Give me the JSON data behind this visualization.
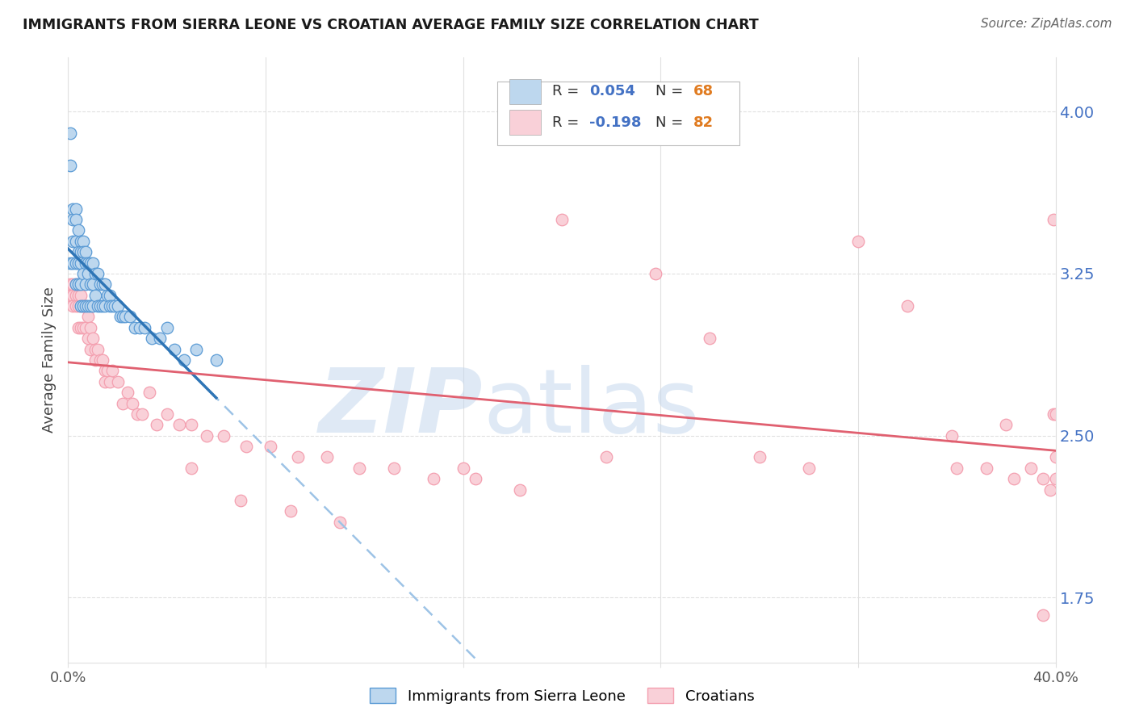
{
  "title": "IMMIGRANTS FROM SIERRA LEONE VS CROATIAN AVERAGE FAMILY SIZE CORRELATION CHART",
  "source": "Source: ZipAtlas.com",
  "ylabel": "Average Family Size",
  "yticks": [
    1.75,
    2.5,
    3.25,
    4.0
  ],
  "xlim": [
    0.0,
    0.4
  ],
  "ylim": [
    1.45,
    4.25
  ],
  "legend_label1": "Immigrants from Sierra Leone",
  "legend_label2": "Croatians",
  "blue_color": "#5b9bd5",
  "blue_fill": "#bdd7ee",
  "pink_color": "#f4a0b0",
  "pink_fill": "#f9d0d8",
  "trend_blue_solid_color": "#2e75b6",
  "trend_blue_dash_color": "#9dc3e6",
  "trend_pink_color": "#e06070",
  "grid_color": "#e0e0e0",
  "tick_label_color": "#4472c4",
  "watermark_zip_color": "#c5d8ee",
  "watermark_atlas_color": "#c5d8ee",
  "blue_x": [
    0.001,
    0.001,
    0.001,
    0.002,
    0.002,
    0.002,
    0.002,
    0.003,
    0.003,
    0.003,
    0.003,
    0.003,
    0.004,
    0.004,
    0.004,
    0.004,
    0.005,
    0.005,
    0.005,
    0.005,
    0.005,
    0.006,
    0.006,
    0.006,
    0.006,
    0.007,
    0.007,
    0.007,
    0.007,
    0.008,
    0.008,
    0.008,
    0.009,
    0.009,
    0.009,
    0.01,
    0.01,
    0.01,
    0.011,
    0.011,
    0.012,
    0.012,
    0.013,
    0.013,
    0.014,
    0.014,
    0.015,
    0.015,
    0.016,
    0.017,
    0.017,
    0.018,
    0.019,
    0.02,
    0.021,
    0.022,
    0.023,
    0.025,
    0.027,
    0.029,
    0.031,
    0.034,
    0.037,
    0.04,
    0.043,
    0.047,
    0.052,
    0.06
  ],
  "blue_y": [
    3.3,
    3.75,
    3.9,
    3.55,
    3.5,
    3.4,
    3.3,
    3.55,
    3.5,
    3.4,
    3.3,
    3.2,
    3.45,
    3.35,
    3.3,
    3.2,
    3.4,
    3.35,
    3.3,
    3.2,
    3.1,
    3.4,
    3.35,
    3.25,
    3.1,
    3.35,
    3.3,
    3.2,
    3.1,
    3.3,
    3.25,
    3.1,
    3.3,
    3.2,
    3.1,
    3.3,
    3.2,
    3.1,
    3.25,
    3.15,
    3.25,
    3.1,
    3.2,
    3.1,
    3.2,
    3.1,
    3.2,
    3.1,
    3.15,
    3.15,
    3.1,
    3.1,
    3.1,
    3.1,
    3.05,
    3.05,
    3.05,
    3.05,
    3.0,
    3.0,
    3.0,
    2.95,
    2.95,
    3.0,
    2.9,
    2.85,
    2.9,
    2.85
  ],
  "pink_x": [
    0.001,
    0.001,
    0.002,
    0.002,
    0.002,
    0.003,
    0.003,
    0.003,
    0.004,
    0.004,
    0.004,
    0.005,
    0.005,
    0.005,
    0.006,
    0.006,
    0.007,
    0.007,
    0.008,
    0.008,
    0.009,
    0.009,
    0.01,
    0.011,
    0.011,
    0.012,
    0.013,
    0.014,
    0.015,
    0.015,
    0.016,
    0.017,
    0.018,
    0.02,
    0.022,
    0.024,
    0.026,
    0.028,
    0.03,
    0.033,
    0.036,
    0.04,
    0.045,
    0.05,
    0.056,
    0.063,
    0.072,
    0.082,
    0.093,
    0.105,
    0.118,
    0.132,
    0.148,
    0.165,
    0.183,
    0.2,
    0.218,
    0.238,
    0.26,
    0.28,
    0.3,
    0.32,
    0.34,
    0.358,
    0.372,
    0.383,
    0.39,
    0.395,
    0.398,
    0.399,
    0.399,
    0.4,
    0.4,
    0.4,
    0.05,
    0.16,
    0.07,
    0.09,
    0.11,
    0.36,
    0.38,
    0.395
  ],
  "pink_y": [
    3.2,
    3.15,
    3.2,
    3.15,
    3.1,
    3.2,
    3.15,
    3.1,
    3.15,
    3.1,
    3.0,
    3.15,
    3.1,
    3.0,
    3.1,
    3.0,
    3.1,
    3.0,
    3.05,
    2.95,
    3.0,
    2.9,
    2.95,
    2.9,
    2.85,
    2.9,
    2.85,
    2.85,
    2.8,
    2.75,
    2.8,
    2.75,
    2.8,
    2.75,
    2.65,
    2.7,
    2.65,
    2.6,
    2.6,
    2.7,
    2.55,
    2.6,
    2.55,
    2.55,
    2.5,
    2.5,
    2.45,
    2.45,
    2.4,
    2.4,
    2.35,
    2.35,
    2.3,
    2.3,
    2.25,
    3.5,
    2.4,
    3.25,
    2.95,
    2.4,
    2.35,
    3.4,
    3.1,
    2.5,
    2.35,
    2.3,
    2.35,
    2.3,
    2.25,
    2.6,
    3.5,
    2.4,
    2.6,
    2.3,
    2.35,
    2.35,
    2.2,
    2.15,
    2.1,
    2.35,
    2.55,
    1.67
  ]
}
